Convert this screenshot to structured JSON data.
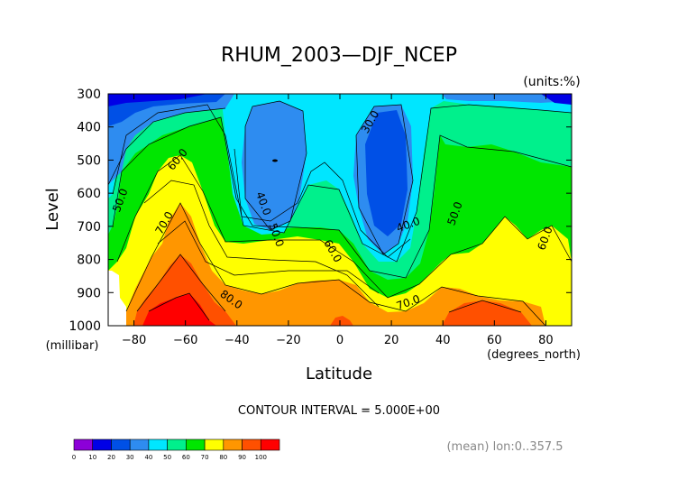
{
  "chart_data": {
    "type": "contour",
    "title": "RHUM_2003—DJF_NCEP",
    "units_note": "(units:%)",
    "xlabel": "Latitude",
    "ylabel": "Level",
    "x_unit_note": "(degrees_north)",
    "y_unit_note": "(millibar)",
    "xlim": [
      -90,
      90
    ],
    "ylim": [
      1000,
      300
    ],
    "xticks": [
      -80,
      -60,
      -40,
      -20,
      0,
      20,
      40,
      60,
      80
    ],
    "yticks": [
      300,
      400,
      500,
      600,
      700,
      800,
      900,
      1000
    ],
    "contour_interval_text": "CONTOUR INTERVAL = 5.000E+00",
    "mean_note": "(mean) lon:0..357.5",
    "colorbar": {
      "levels": [
        0,
        10,
        20,
        30,
        40,
        50,
        60,
        70,
        80,
        90,
        100
      ],
      "colors": [
        "#8c00d8",
        "#0000e6",
        "#0050e6",
        "#2e8cf0",
        "#00e6ff",
        "#00f08c",
        "#00e600",
        "#ffff00",
        "#ff9600",
        "#ff5000",
        "#ff0000"
      ]
    },
    "contour_labels": [
      {
        "text": "30.0",
        "lat": 13,
        "lev": 390
      },
      {
        "text": "60.0",
        "lat": -62,
        "lev": 505
      },
      {
        "text": "50.0",
        "lat": -84,
        "lev": 625
      },
      {
        "text": "40.0",
        "lat": -31,
        "lev": 635
      },
      {
        "text": "50.0",
        "lat": -26,
        "lev": 730
      },
      {
        "text": "70.0",
        "lat": -67,
        "lev": 695
      },
      {
        "text": "60.0",
        "lat": -4,
        "lev": 780
      },
      {
        "text": "40.0",
        "lat": 27,
        "lev": 705
      },
      {
        "text": "50.0",
        "lat": 46,
        "lev": 665
      },
      {
        "text": "60.0",
        "lat": 81,
        "lev": 740
      },
      {
        "text": "80.0",
        "lat": -43,
        "lev": 930
      },
      {
        "text": "70.0",
        "lat": 27,
        "lev": 940
      }
    ]
  }
}
